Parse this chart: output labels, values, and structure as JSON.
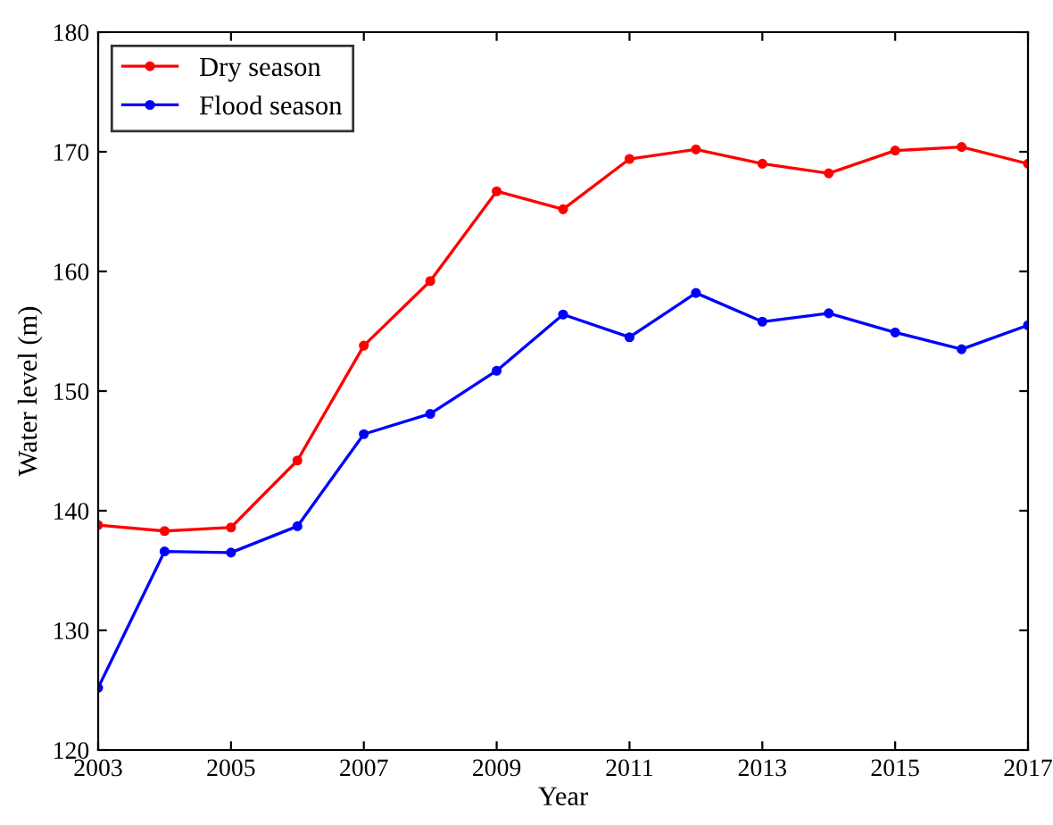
{
  "chart_data": {
    "type": "line",
    "xlabel": "Year",
    "ylabel": "Water level (m)",
    "x": [
      2003,
      2004,
      2005,
      2006,
      2007,
      2008,
      2009,
      2010,
      2011,
      2012,
      2013,
      2014,
      2015,
      2016,
      2017
    ],
    "series": [
      {
        "name": "Dry season",
        "color": "#ff0000",
        "values": [
          138.8,
          138.3,
          138.6,
          144.2,
          153.8,
          159.2,
          166.7,
          165.2,
          169.4,
          170.2,
          169.0,
          168.2,
          170.1,
          170.4,
          169.0
        ]
      },
      {
        "name": "Flood season",
        "color": "#0000ff",
        "values": [
          125.2,
          136.6,
          136.5,
          138.7,
          146.4,
          148.1,
          151.7,
          156.4,
          154.5,
          158.2,
          155.8,
          156.5,
          154.9,
          153.5,
          155.5
        ]
      }
    ],
    "xlim": [
      2003,
      2017
    ],
    "xticks": [
      2003,
      2005,
      2007,
      2009,
      2011,
      2013,
      2015,
      2017
    ],
    "ylim": [
      120,
      180
    ],
    "yticks": [
      120,
      130,
      140,
      150,
      160,
      170,
      180
    ],
    "grid": false,
    "legend": "top left",
    "marker": "circle",
    "line_style": "solid"
  }
}
